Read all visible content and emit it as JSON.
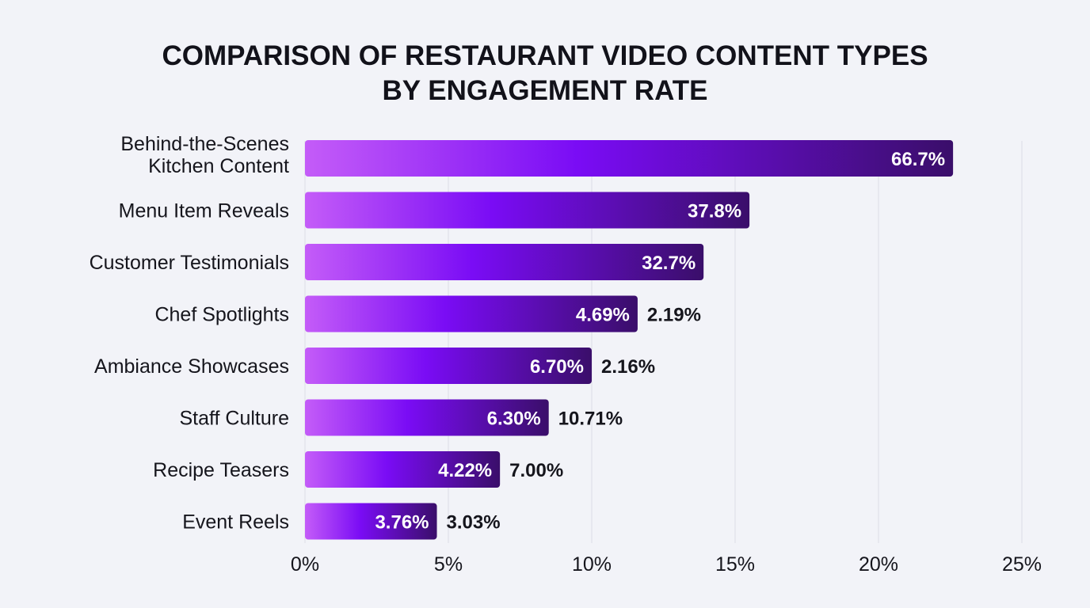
{
  "chart_data": {
    "type": "bar",
    "orientation": "horizontal",
    "title": [
      "COMPARISON OF RESTAURANT VIDEO CONTENT TYPES",
      "BY ENGAGEMENT RATE"
    ],
    "xlabel": "",
    "ylabel": "",
    "xlim": [
      0,
      25
    ],
    "x_ticks": [
      "0%",
      "5%",
      "10%",
      "15%",
      "20%",
      "25%"
    ],
    "x_tick_values": [
      0,
      5,
      10,
      15,
      20,
      25
    ],
    "grid": "vertical",
    "categories": [
      [
        "Behind-the-Scenes",
        "Kitchen Content"
      ],
      [
        "Menu Item Reveals"
      ],
      [
        "Customer Testimonials"
      ],
      [
        "Chef Spotlights"
      ],
      [
        "Ambiance Showcases"
      ],
      [
        "Staff Culture"
      ],
      [
        "Recipe Teasers"
      ],
      [
        "Event Reels"
      ]
    ],
    "values": [
      22.6,
      15.5,
      13.9,
      11.6,
      10.0,
      8.5,
      6.8,
      4.6
    ],
    "bar_labels": [
      "66.7%",
      "37.8%",
      "32.7%",
      "4.69%",
      "6.70%",
      "6.30%",
      "4.22%",
      "3.76%"
    ],
    "secondary_labels": [
      "",
      "",
      "",
      "2.19%",
      "2.16%",
      "10.71%",
      "7.00%",
      "3.03%"
    ],
    "colors": {
      "gradient_start": "#c45cf8",
      "gradient_mid": "#7a0cf5",
      "gradient_end": "#3a0e6a",
      "background": "#f2f3f8",
      "grid": "#dcdde6"
    }
  }
}
